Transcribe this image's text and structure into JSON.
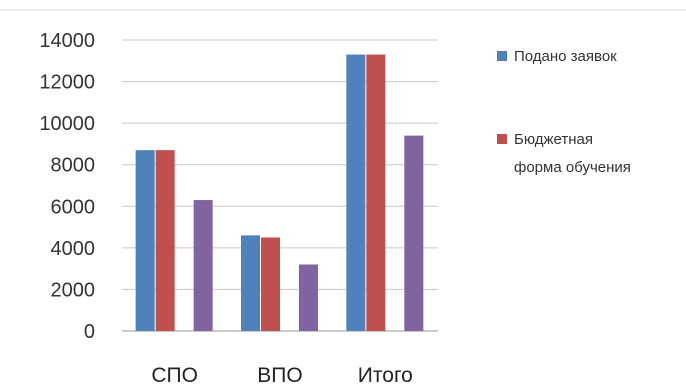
{
  "chart_data": {
    "type": "bar",
    "categories": [
      "СПО",
      "ВПО",
      "Итого"
    ],
    "series": [
      {
        "name": "Подано заявок",
        "values": [
          8700,
          4600,
          13300
        ],
        "color": "#4f81bd"
      },
      {
        "name": "Бюджетная форма обучения",
        "values": [
          8700,
          4500,
          13300
        ],
        "color": "#c0504d"
      },
      {
        "values": [
          6300,
          3200,
          9400
        ],
        "color": "#8064a2"
      }
    ],
    "yticks": [
      0,
      2000,
      4000,
      6000,
      8000,
      10000,
      12000,
      14000
    ],
    "ylim": [
      0,
      14000
    ],
    "grid": true,
    "legend": {
      "position": "right",
      "entries": [
        {
          "lines": [
            "Подано заявок"
          ],
          "color": "#4f81bd"
        },
        {
          "lines": [
            "Бюджетная",
            "форма обучения"
          ],
          "color": "#c0504d"
        }
      ]
    }
  }
}
